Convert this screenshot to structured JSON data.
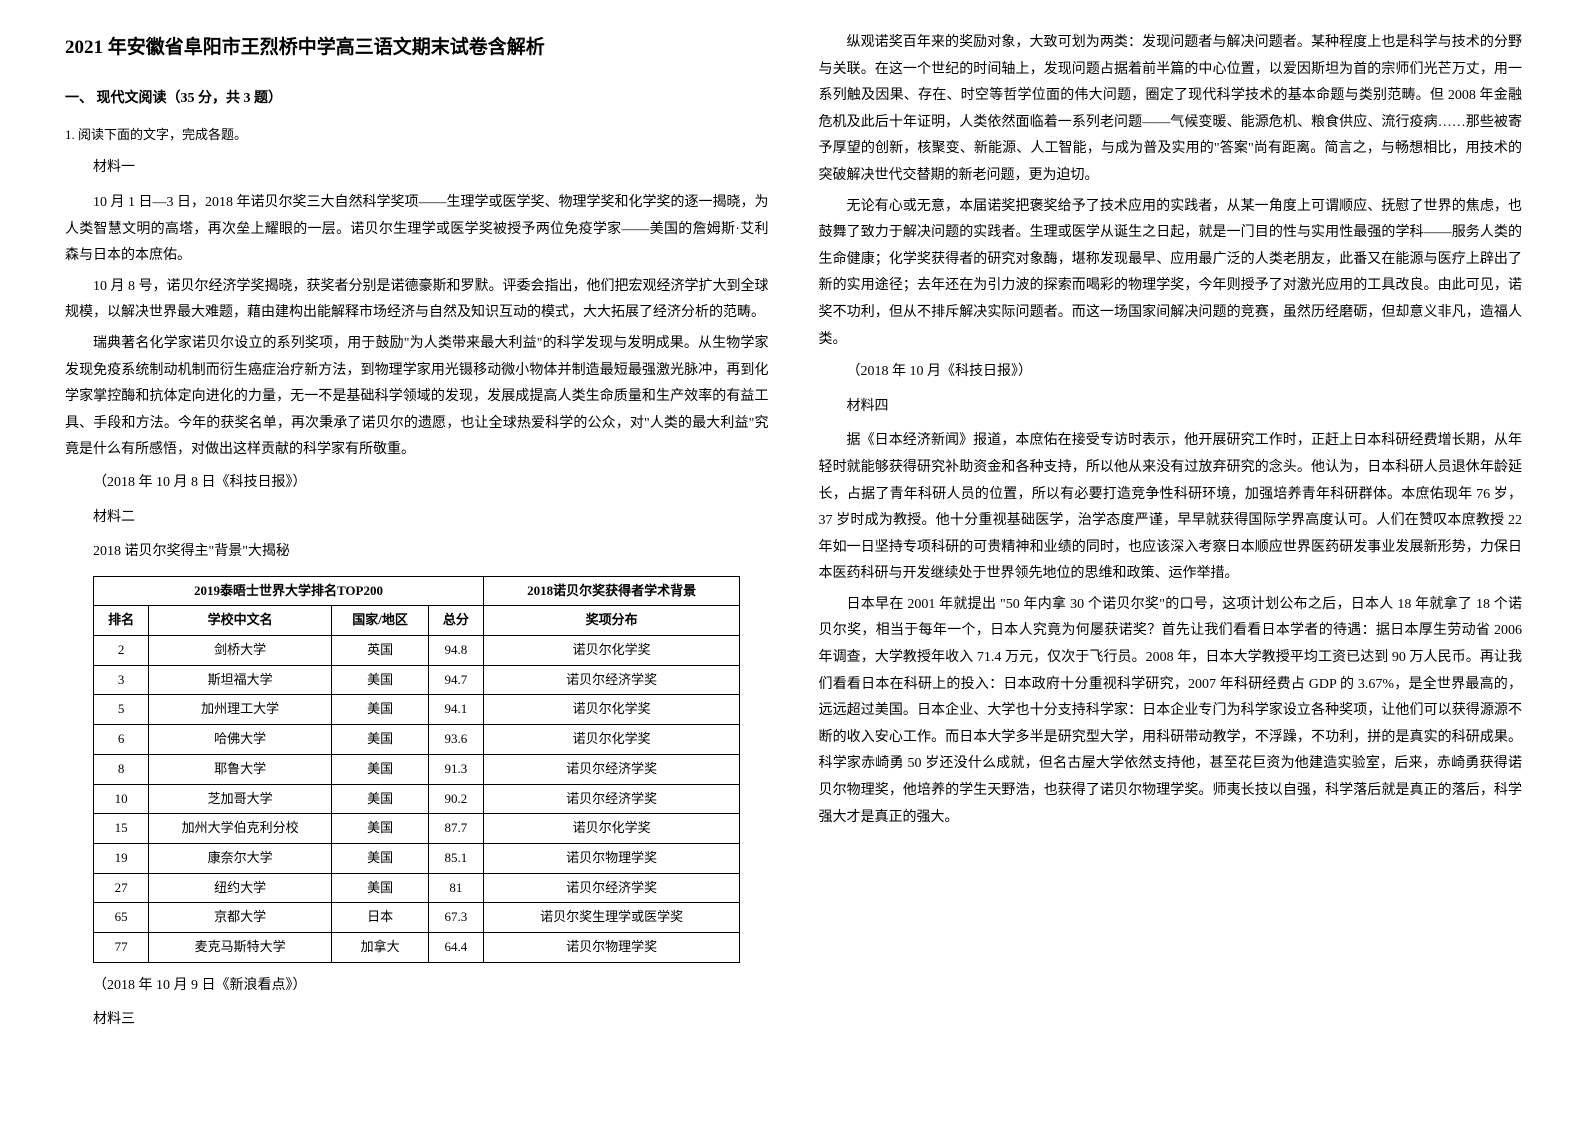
{
  "title": "2021 年安徽省阜阳市王烈桥中学高三语文期末试卷含解析",
  "sections": {
    "reading": {
      "heading": "一、 现代文阅读（35 分，共 3 题）",
      "question": "1. 阅读下面的文字，完成各题。"
    }
  },
  "left_column": {
    "material1_label": "材料一",
    "material1_paras": [
      "10 月 1 日—3 日，2018 年诺贝尔奖三大自然科学奖项——生理学或医学奖、物理学奖和化学奖的逐一揭晓，为人类智慧文明的高塔，再次垒上耀眼的一层。诺贝尔生理学或医学奖被授予两位免疫学家——美国的詹姆斯·艾利森与日本的本庶佑。",
      "10 月 8 号，诺贝尔经济学奖揭晓，获奖者分别是诺德豪斯和罗默。评委会指出，他们把宏观经济学扩大到全球规模，以解决世界最大难题，藉由建构出能解释市场经济与自然及知识互动的模式，大大拓展了经济分析的范畴。",
      "瑞典著名化学家诺贝尔设立的系列奖项，用于鼓励\"为人类带来最大利益\"的科学发现与发明成果。从生物学家发现免疫系统制动机制而衍生癌症治疗新方法，到物理学家用光镊移动微小物体并制造最短最强激光脉冲，再到化学家掌控酶和抗体定向进化的力量，无一不是基础科学领域的发现，发展成提高人类生命质量和生产效率的有益工具、手段和方法。今年的获奖名单，再次秉承了诺贝尔的遗愿，也让全球热爱科学的公众，对\"人类的最大利益\"究竟是什么有所感悟，对做出这样贡献的科学家有所敬重。"
    ],
    "material1_source": "（2018 年 10 月 8 日《科技日报》）",
    "material2_label": "材料二",
    "material2_subtitle": "2018 诺贝尔奖得主\"背景\"大揭秘",
    "table": {
      "header_left": "2019泰晤士世界大学排名TOP200",
      "header_right": "2018诺贝尔奖获得者学术背景",
      "columns": [
        "排名",
        "学校中文名",
        "国家/地区",
        "总分",
        "奖项分布"
      ],
      "rows": [
        [
          "2",
          "剑桥大学",
          "英国",
          "94.8",
          "诺贝尔化学奖"
        ],
        [
          "3",
          "斯坦福大学",
          "美国",
          "94.7",
          "诺贝尔经济学奖"
        ],
        [
          "5",
          "加州理工大学",
          "美国",
          "94.1",
          "诺贝尔化学奖"
        ],
        [
          "6",
          "哈佛大学",
          "美国",
          "93.6",
          "诺贝尔化学奖"
        ],
        [
          "8",
          "耶鲁大学",
          "美国",
          "91.3",
          "诺贝尔经济学奖"
        ],
        [
          "10",
          "芝加哥大学",
          "美国",
          "90.2",
          "诺贝尔经济学奖"
        ],
        [
          "15",
          "加州大学伯克利分校",
          "美国",
          "87.7",
          "诺贝尔化学奖"
        ],
        [
          "19",
          "康奈尔大学",
          "美国",
          "85.1",
          "诺贝尔物理学奖"
        ],
        [
          "27",
          "纽约大学",
          "美国",
          "81",
          "诺贝尔经济学奖"
        ],
        [
          "65",
          "京都大学",
          "日本",
          "67.3",
          "诺贝尔奖生理学或医学奖"
        ],
        [
          "77",
          "麦克马斯特大学",
          "加拿大",
          "64.4",
          "诺贝尔物理学奖"
        ]
      ]
    },
    "material2_source": "（2018 年 10 月 9 日《新浪看点》）",
    "material3_label": "材料三"
  },
  "right_column": {
    "material3_paras": [
      "纵观诺奖百年来的奖励对象，大致可划为两类：发现问题者与解决问题者。某种程度上也是科学与技术的分野与关联。在这一个世纪的时间轴上，发现问题占据着前半篇的中心位置，以爱因斯坦为首的宗师们光芒万丈，用一系列触及因果、存在、时空等哲学位面的伟大问题，圈定了现代科学技术的基本命题与类别范畴。但 2008 年金融危机及此后十年证明，人类依然面临着一系列老问题——气候变暖、能源危机、粮食供应、流行疫病……那些被寄予厚望的创新，核聚变、新能源、人工智能，与成为普及实用的\"答案\"尚有距离。简言之，与畅想相比，用技术的突破解决世代交替期的新老问题，更为迫切。",
      "无论有心或无意，本届诺奖把褒奖给予了技术应用的实践者，从某一角度上可谓顺应、抚慰了世界的焦虑，也鼓舞了致力于解决问题的实践者。生理或医学从诞生之日起，就是一门目的性与实用性最强的学科——服务人类的生命健康；化学奖获得者的研究对象酶，堪称发现最早、应用最广泛的人类老朋友，此番又在能源与医疗上辟出了新的实用途径；去年还在为引力波的探索而喝彩的物理学奖，今年则授予了对激光应用的工具改良。由此可见，诺奖不功利，但从不排斥解决实际问题者。而这一场国家间解决问题的竞赛，虽然历经磨砺，但却意义非凡，造福人类。"
    ],
    "material3_source": "（2018 年 10 月《科技日报》）",
    "material4_label": "材料四",
    "material4_paras": [
      "据《日本经济新闻》报道，本庶佑在接受专访时表示，他开展研究工作时，正赶上日本科研经费增长期，从年轻时就能够获得研究补助资金和各种支持，所以他从来没有过放弃研究的念头。他认为，日本科研人员退休年龄延长，占据了青年科研人员的位置，所以有必要打造竞争性科研环境，加强培养青年科研群体。本庶佑现年 76 岁，37 岁时成为教授。他十分重视基础医学，治学态度严谨，早早就获得国际学界高度认可。人们在赞叹本庶教授 22 年如一日坚持专项科研的可贵精神和业绩的同时，也应该深入考察日本顺应世界医药研发事业发展新形势，力保日本医药科研与开发继续处于世界领先地位的思维和政策、运作举措。",
      "日本早在 2001 年就提出 \"50 年内拿 30 个诺贝尔奖\"的口号，这项计划公布之后，日本人 18 年就拿了 18 个诺贝尔奖，相当于每年一个，日本人究竟为何屡获诺奖？首先让我们看看日本学者的待遇：据日本厚生劳动省 2006 年调查，大学教授年收入 71.4 万元，仅次于飞行员。2008 年，日本大学教授平均工资已达到 90 万人民币。再让我们看看日本在科研上的投入：日本政府十分重视科学研究，2007 年科研经费占 GDP 的 3.67%，是全世界最高的，远远超过美国。日本企业、大学也十分支持科学家：日本企业专门为科学家设立各种奖项，让他们可以获得源源不断的收入安心工作。而日本大学多半是研究型大学，用科研带动教学，不浮躁，不功利，拼的是真实的科研成果。科学家赤崎勇 50 岁还没什么成就，但名古屋大学依然支持他，甚至花巨资为他建造实验室，后来，赤崎勇获得诺贝尔物理奖，他培养的学生天野浩，也获得了诺贝尔物理学奖。师夷长技以自强，科学落后就是真正的落后，科学强大才是真正的强大。"
    ]
  },
  "styling": {
    "background_color": "#ffffff",
    "text_color": "#000000",
    "title_fontsize": 19,
    "body_fontsize": 14,
    "table_fontsize": 13,
    "line_height": 1.9,
    "border_color": "#000000"
  }
}
